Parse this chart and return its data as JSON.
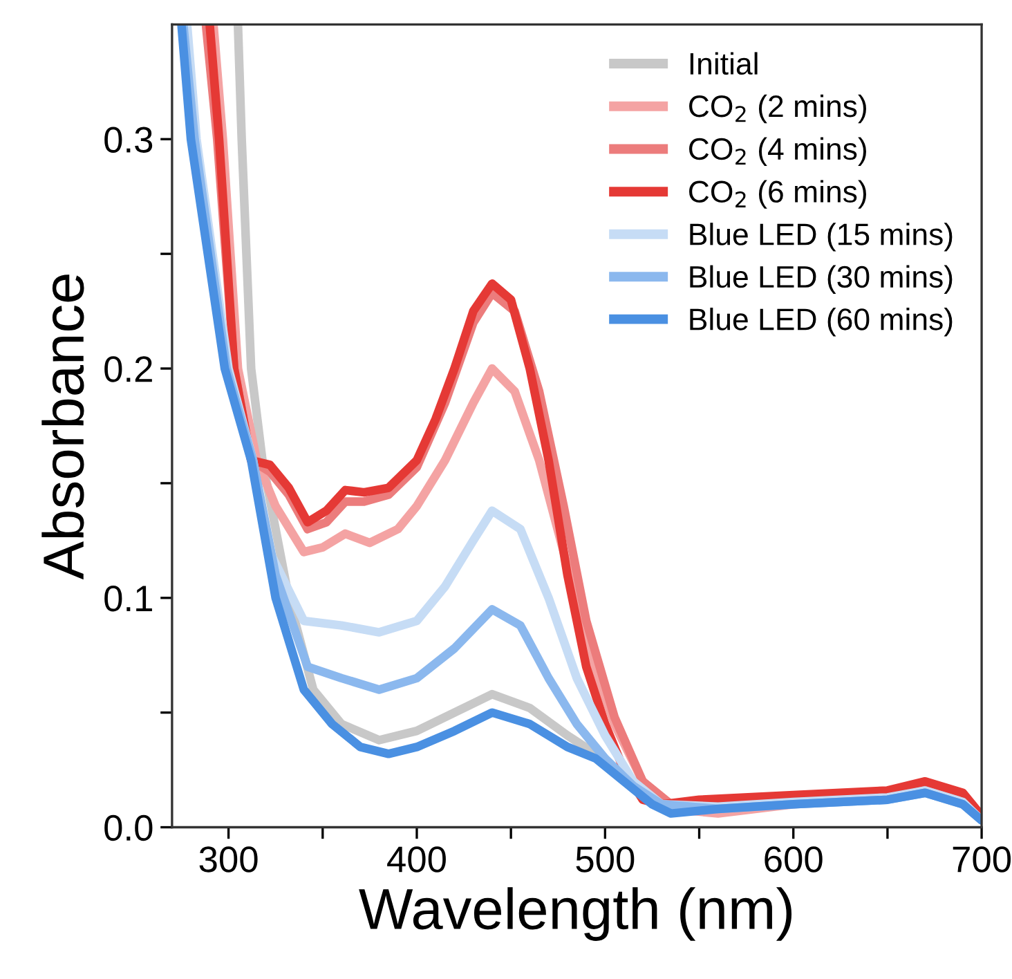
{
  "chart_data": {
    "type": "line",
    "xlabel": "Wavelength (nm)",
    "ylabel": "Absorbance",
    "xlim": [
      270,
      700
    ],
    "ylim": [
      0,
      0.35
    ],
    "xticks": [
      300,
      {
        "value": 350,
        "label": null
      },
      400,
      {
        "value": 450,
        "label": null
      },
      500,
      {
        "value": 550,
        "label": null
      },
      600,
      {
        "value": 650,
        "label": null
      },
      700
    ],
    "yticks": [
      {
        "value": 0,
        "label": "0.0"
      },
      {
        "value": 0.05,
        "label": null
      },
      0.1,
      {
        "value": 0.15,
        "label": null
      },
      0.2,
      {
        "value": 0.25,
        "label": null
      },
      0.3
    ],
    "grid": false,
    "legend": "top right",
    "marker": "none",
    "line_style": "solid",
    "series": [
      {
        "name": "Initial",
        "color": "#c8c8c8",
        "x": [
          305,
          307,
          312,
          318,
          332,
          345,
          360,
          380,
          400,
          420,
          440,
          460,
          480,
          495,
          515,
          530,
          540,
          580,
          620,
          660,
          675,
          695,
          700
        ],
        "values": [
          0.35,
          0.3,
          0.2,
          0.16,
          0.1,
          0.06,
          0.045,
          0.038,
          0.042,
          0.05,
          0.058,
          0.052,
          0.04,
          0.032,
          0.02,
          0.01,
          0.008,
          0.01,
          0.012,
          0.014,
          0.016,
          0.01,
          0.003
        ]
      },
      {
        "name": "CO$_{2}$ (2 mins)",
        "color": "#f4a3a3",
        "x": [
          292,
          297,
          305,
          315,
          325,
          340,
          350,
          362,
          375,
          390,
          400,
          415,
          430,
          440,
          452,
          465,
          478,
          490,
          505,
          520,
          535,
          560,
          600,
          650,
          670,
          690,
          700
        ],
        "values": [
          0.35,
          0.3,
          0.2,
          0.16,
          0.14,
          0.12,
          0.122,
          0.128,
          0.124,
          0.13,
          0.14,
          0.16,
          0.185,
          0.2,
          0.19,
          0.16,
          0.12,
          0.08,
          0.045,
          0.02,
          0.008,
          0.006,
          0.01,
          0.013,
          0.016,
          0.012,
          0.004
        ]
      },
      {
        "name": "CO$_{2}$ (4 mins)",
        "color": "#ec7c7c",
        "x": [
          288,
          294,
          303,
          312,
          322,
          332,
          342,
          352,
          362,
          372,
          385,
          400,
          415,
          430,
          440,
          452,
          465,
          478,
          490,
          505,
          520,
          535,
          560,
          600,
          650,
          670,
          690,
          700
        ],
        "values": [
          0.35,
          0.3,
          0.2,
          0.16,
          0.155,
          0.145,
          0.13,
          0.133,
          0.142,
          0.142,
          0.145,
          0.157,
          0.185,
          0.22,
          0.233,
          0.225,
          0.19,
          0.14,
          0.09,
          0.048,
          0.02,
          0.01,
          0.01,
          0.012,
          0.015,
          0.018,
          0.013,
          0.004
        ]
      },
      {
        "name": "CO$_{2}$ (6 mins)",
        "color": "#e53935",
        "x": [
          290,
          295,
          303,
          312,
          322,
          332,
          342,
          352,
          362,
          372,
          385,
          400,
          410,
          420,
          430,
          440,
          450,
          460,
          470,
          480,
          490,
          500,
          510,
          520,
          530,
          550,
          600,
          650,
          670,
          690,
          700
        ],
        "values": [
          0.35,
          0.3,
          0.2,
          0.16,
          0.158,
          0.148,
          0.133,
          0.138,
          0.147,
          0.146,
          0.148,
          0.16,
          0.178,
          0.2,
          0.225,
          0.237,
          0.23,
          0.2,
          0.16,
          0.11,
          0.07,
          0.045,
          0.025,
          0.012,
          0.01,
          0.012,
          0.014,
          0.016,
          0.02,
          0.015,
          0.005
        ]
      },
      {
        "name": "Blue LED (15 mins)",
        "color": "#c6dcf5",
        "x": [
          278,
          283,
          300,
          313,
          322,
          340,
          360,
          380,
          400,
          415,
          430,
          440,
          455,
          470,
          485,
          500,
          515,
          530,
          560,
          600,
          650,
          670,
          690,
          700
        ],
        "values": [
          0.35,
          0.3,
          0.2,
          0.16,
          0.12,
          0.09,
          0.088,
          0.085,
          0.09,
          0.105,
          0.125,
          0.138,
          0.13,
          0.1,
          0.065,
          0.04,
          0.02,
          0.01,
          0.009,
          0.011,
          0.013,
          0.016,
          0.011,
          0.003
        ]
      },
      {
        "name": "Blue LED (30 mins)",
        "color": "#8bb8ee",
        "x": [
          276,
          282,
          299,
          313,
          325,
          342,
          360,
          380,
          400,
          420,
          440,
          455,
          470,
          485,
          500,
          515,
          530,
          560,
          600,
          650,
          670,
          690,
          700
        ],
        "values": [
          0.35,
          0.3,
          0.2,
          0.16,
          0.11,
          0.07,
          0.065,
          0.06,
          0.065,
          0.078,
          0.095,
          0.088,
          0.065,
          0.045,
          0.03,
          0.018,
          0.01,
          0.008,
          0.01,
          0.012,
          0.015,
          0.01,
          0.003
        ]
      },
      {
        "name": "Blue LED (60 mins)",
        "color": "#4a90e2",
        "x": [
          275,
          280,
          298,
          312,
          325,
          340,
          355,
          370,
          385,
          400,
          420,
          440,
          460,
          480,
          495,
          510,
          525,
          535,
          560,
          600,
          650,
          670,
          690,
          700
        ],
        "values": [
          0.35,
          0.3,
          0.2,
          0.16,
          0.1,
          0.06,
          0.045,
          0.035,
          0.032,
          0.035,
          0.042,
          0.05,
          0.045,
          0.035,
          0.03,
          0.02,
          0.01,
          0.006,
          0.008,
          0.01,
          0.012,
          0.015,
          0.01,
          0.003
        ]
      }
    ]
  }
}
